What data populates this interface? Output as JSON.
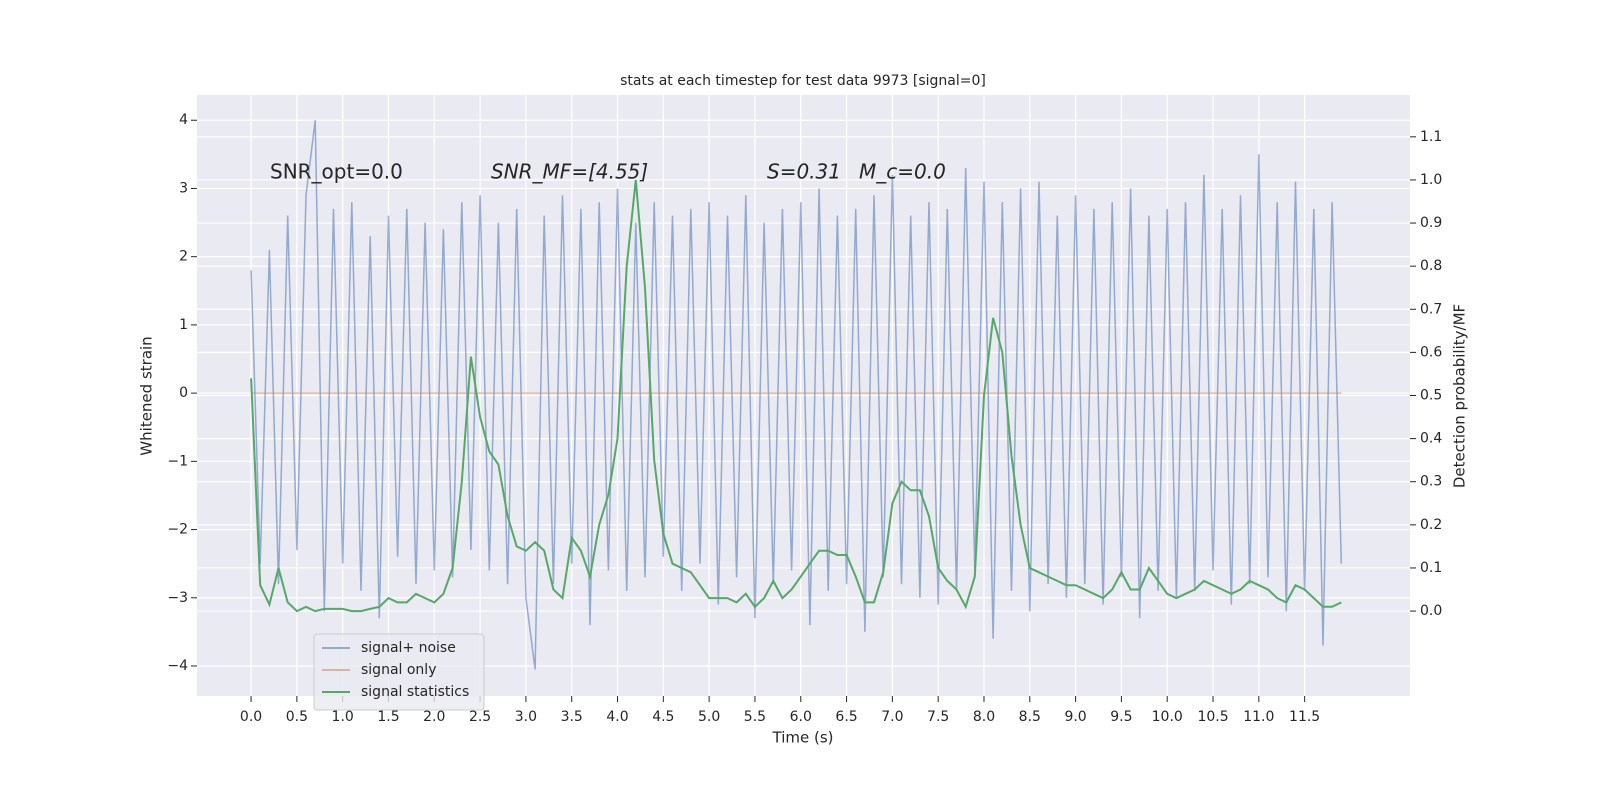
{
  "chart_data": {
    "type": "line",
    "title": "stats at each timestep for test data 9973 [signal=0]",
    "xlabel": "Time (s)",
    "ylabel": "Whitened strain",
    "y2label": "Detection probability/MF",
    "annotations": [
      "SNR_opt=0.0",
      "SNR_MF=[4.55]",
      "S=0.31",
      "M_c=0.0"
    ],
    "x": [
      0,
      0.1,
      0.2,
      0.3,
      0.4,
      0.5,
      0.6,
      0.7,
      0.8,
      0.9,
      1,
      1.1,
      1.2,
      1.3,
      1.4,
      1.5,
      1.6,
      1.7,
      1.8,
      1.9,
      2,
      2.1,
      2.2,
      2.3,
      2.4,
      2.5,
      2.6,
      2.7,
      2.8,
      2.9,
      3,
      3.1,
      3.2,
      3.3,
      3.4,
      3.5,
      3.6,
      3.7,
      3.8,
      3.9,
      4,
      4.1,
      4.2,
      4.3,
      4.4,
      4.5,
      4.6,
      4.7,
      4.8,
      4.9,
      5,
      5.1,
      5.2,
      5.3,
      5.4,
      5.5,
      5.6,
      5.7,
      5.8,
      5.9,
      6,
      6.1,
      6.2,
      6.3,
      6.4,
      6.5,
      6.6,
      6.7,
      6.8,
      6.9,
      7,
      7.1,
      7.2,
      7.3,
      7.4,
      7.5,
      7.6,
      7.7,
      7.8,
      7.9,
      8,
      8.1,
      8.2,
      8.3,
      8.4,
      8.5,
      8.6,
      8.7,
      8.8,
      8.9,
      9,
      9.1,
      9.2,
      9.3,
      9.4,
      9.5,
      9.6,
      9.7,
      9.8,
      9.9,
      10,
      10.1,
      10.2,
      10.3,
      10.4,
      10.5,
      10.6,
      10.7,
      10.8,
      10.9,
      11,
      11.1,
      11.2,
      11.3,
      11.4,
      11.5,
      11.6,
      11.7,
      11.8,
      11.9
    ],
    "series": [
      {
        "name": "signal+ noise",
        "color": "#4c72b0",
        "values": [
          1.8,
          -2.5,
          2.1,
          -2.8,
          2.6,
          -2.3,
          2.9,
          4.0,
          -3.2,
          2.7,
          -2.5,
          2.8,
          -2.9,
          2.3,
          -3.3,
          2.6,
          -2.4,
          2.7,
          -2.8,
          2.5,
          -2.6,
          2.4,
          -2.7,
          2.8,
          -2.3,
          2.9,
          -2.6,
          2.5,
          -2.8,
          2.7,
          -3.0,
          -4.05,
          2.6,
          -2.8,
          2.9,
          -2.5,
          2.7,
          -3.4,
          2.8,
          -2.6,
          3.0,
          -2.9,
          2.5,
          -2.7,
          2.8,
          -2.4,
          2.6,
          -2.9,
          2.7,
          -2.5,
          2.8,
          -3.1,
          2.6,
          -2.7,
          2.9,
          -3.3,
          2.5,
          -2.8,
          2.7,
          -2.6,
          2.8,
          -3.4,
          3.0,
          -2.9,
          2.6,
          -2.8,
          2.7,
          -3.5,
          2.9,
          -2.7,
          3.2,
          -2.8,
          2.6,
          -3.0,
          2.8,
          -3.1,
          2.7,
          -2.9,
          3.3,
          -2.6,
          3.1,
          -3.6,
          2.8,
          -2.9,
          3.0,
          -3.2,
          3.1,
          -2.8,
          2.6,
          -3.0,
          2.9,
          -2.8,
          2.7,
          -3.1,
          2.8,
          -2.7,
          3.0,
          -3.3,
          2.6,
          -2.9,
          2.7,
          -3.0,
          2.8,
          -2.9,
          3.2,
          -2.6,
          2.7,
          -3.1,
          2.9,
          -2.8,
          3.5,
          -2.7,
          2.8,
          -3.2,
          3.1,
          -2.9,
          2.7,
          -3.7,
          2.8,
          -2.5
        ]
      },
      {
        "name": "signal only",
        "color": "#dd8452",
        "x": [
          0,
          11.9
        ],
        "values": [
          0,
          0
        ]
      },
      {
        "name": "signal statistics",
        "color": "#55a868",
        "axis": "y2",
        "values": [
          0.54,
          0.06,
          0.015,
          0.1,
          0.02,
          0.0,
          0.01,
          0.0,
          0.005,
          0.005,
          0.005,
          0.0,
          0.0,
          0.005,
          0.01,
          0.03,
          0.02,
          0.02,
          0.04,
          0.03,
          0.02,
          0.04,
          0.1,
          0.3,
          0.59,
          0.45,
          0.37,
          0.34,
          0.22,
          0.15,
          0.14,
          0.16,
          0.14,
          0.05,
          0.03,
          0.17,
          0.14,
          0.08,
          0.2,
          0.27,
          0.4,
          0.8,
          1.0,
          0.75,
          0.35,
          0.18,
          0.11,
          0.1,
          0.09,
          0.06,
          0.03,
          0.03,
          0.03,
          0.02,
          0.04,
          0.01,
          0.03,
          0.07,
          0.03,
          0.05,
          0.08,
          0.11,
          0.14,
          0.14,
          0.13,
          0.13,
          0.08,
          0.02,
          0.02,
          0.09,
          0.25,
          0.3,
          0.28,
          0.28,
          0.22,
          0.1,
          0.07,
          0.05,
          0.01,
          0.08,
          0.5,
          0.68,
          0.6,
          0.36,
          0.2,
          0.1,
          0.09,
          0.08,
          0.07,
          0.06,
          0.06,
          0.05,
          0.04,
          0.03,
          0.05,
          0.09,
          0.05,
          0.05,
          0.1,
          0.07,
          0.04,
          0.03,
          0.04,
          0.05,
          0.07,
          0.06,
          0.05,
          0.04,
          0.05,
          0.07,
          0.06,
          0.05,
          0.03,
          0.02,
          0.06,
          0.05,
          0.03,
          0.01,
          0.01,
          0.02
        ]
      }
    ],
    "xlim": [
      -0.59,
      12.65
    ],
    "ylim": [
      -4.44,
      4.37
    ],
    "y2lim": [
      -0.197,
      1.197
    ],
    "xticks": [
      {
        "value": 0,
        "label": "0.0"
      },
      0.5,
      {
        "value": 1,
        "label": "1.0"
      },
      1.5,
      {
        "value": 2,
        "label": "2.0"
      },
      2.5,
      {
        "value": 3,
        "label": "3.0"
      },
      3.5,
      {
        "value": 4,
        "label": "4.0"
      },
      4.5,
      {
        "value": 5,
        "label": "5.0"
      },
      5.5,
      {
        "value": 6,
        "label": "6.0"
      },
      6.5,
      {
        "value": 7,
        "label": "7.0"
      },
      7.5,
      {
        "value": 8,
        "label": "8.0"
      },
      8.5,
      {
        "value": 9,
        "label": "9.0"
      },
      9.5,
      {
        "value": 10,
        "label": "10.0"
      },
      10.5,
      {
        "value": 11,
        "label": "11.0"
      },
      11.5
    ],
    "yticks": [
      {
        "value": -4,
        "label": "−4"
      },
      {
        "value": -3,
        "label": "−3"
      },
      {
        "value": -2,
        "label": "−2"
      },
      {
        "value": -1,
        "label": "−1"
      },
      0,
      1,
      2,
      3,
      4
    ],
    "y2ticks": [
      {
        "value": 0,
        "label": "0.0"
      },
      0.1,
      0.2,
      0.3,
      0.4,
      0.5,
      0.6,
      0.7,
      0.8,
      0.9,
      {
        "value": 1,
        "label": "1.0"
      },
      1.1
    ],
    "grid": true,
    "legend": "lower left"
  }
}
